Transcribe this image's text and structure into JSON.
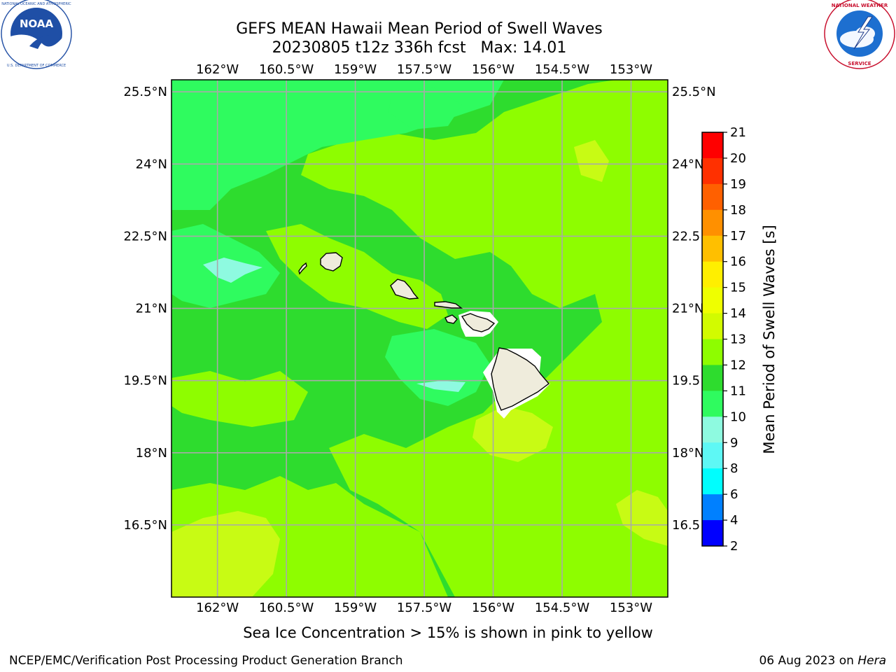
{
  "title": {
    "line1": "GEFS MEAN Hawaii Mean Period of Swell Waves",
    "line2": "20230805 t12z 336h fcst   Max: 14.01"
  },
  "logos": {
    "left": {
      "icon": "noaa-logo-icon",
      "text": "NOAA",
      "ring_text": "NATIONAL OCEANIC AND ATMOSPHERIC ADMINISTRATION · U.S. DEPARTMENT OF COMMERCE"
    },
    "right": {
      "icon": "nws-logo-icon",
      "ring_text": "NATIONAL WEATHER SERVICE"
    }
  },
  "map": {
    "lon_ticks": [
      "162°W",
      "160.5°W",
      "159°W",
      "157.5°W",
      "156°W",
      "154.5°W",
      "153°W"
    ],
    "lat_ticks_left": [
      "25.5°N",
      "24°N",
      "22.5°N",
      "21°N",
      "19.5°N",
      "18°N",
      "16.5°N"
    ],
    "lat_ticks_right": [
      "25.5°N",
      "24°N",
      "22.5",
      "21°N",
      "19.5",
      "18°N",
      "16.5"
    ],
    "lon_values": [
      -162,
      -160.5,
      -159,
      -157.5,
      -156,
      -154.5,
      -153
    ],
    "lat_values": [
      25.5,
      24,
      22.5,
      21,
      19.5,
      18,
      16.5
    ],
    "extent": {
      "lon": [
        -163,
        -152.2
      ],
      "lat": [
        15.0,
        25.75
      ]
    },
    "field_colors": {
      "bright_green_11_12": "#2edc2e",
      "yellow_green_12_13": "#8efd00",
      "chartreuse_13_14": "#c8fb14",
      "light_green_10_11": "#2ffb5f",
      "aqua_9_10": "#8efae0",
      "land": "#efecdc"
    }
  },
  "colorbar": {
    "label": "Mean Period of Swell Waves [s]",
    "ticks": [
      "21",
      "20",
      "19",
      "18",
      "17",
      "16",
      "15",
      "14",
      "13",
      "12",
      "11",
      "10",
      "9",
      "8",
      "6",
      "4",
      "2"
    ],
    "colors": [
      "#ff0000",
      "#ff3000",
      "#ff6000",
      "#ff9000",
      "#ffbf00",
      "#ffef00",
      "#efff00",
      "#d2fb00",
      "#8efd00",
      "#2edc2e",
      "#2ffb5f",
      "#8efae0",
      "#5ef8f5",
      "#00fefe",
      "#0080ff",
      "#0000ff"
    ]
  },
  "caption": "Sea Ice Concentration > 15% is shown in pink to yellow",
  "footer": {
    "left": "NCEP/EMC/Verification Post Processing Product Generation Branch",
    "right_date": "06 Aug 2023 on ",
    "right_machine": "Hera"
  }
}
